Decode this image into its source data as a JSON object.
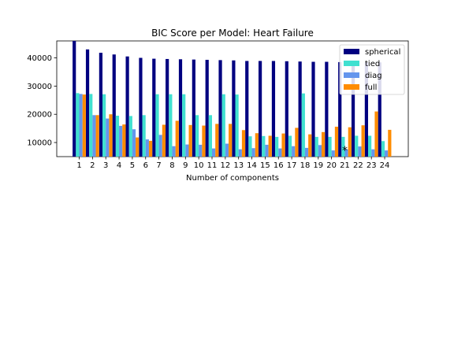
{
  "chart_data": {
    "type": "bar",
    "title": "BIC Score per Model: Heart Failure",
    "xlabel": "Number of components",
    "ylabel": "",
    "categories": [
      "1",
      "2",
      "3",
      "4",
      "5",
      "6",
      "7",
      "8",
      "9",
      "10",
      "11",
      "12",
      "13",
      "14",
      "15",
      "16",
      "17",
      "18",
      "19",
      "20",
      "21",
      "22",
      "23",
      "24"
    ],
    "ylim": [
      5000,
      46000
    ],
    "yticks": [
      10000,
      20000,
      30000,
      40000
    ],
    "ytick_labels": [
      "10000",
      "20000",
      "30000",
      "40000"
    ],
    "series": [
      {
        "name": "spherical",
        "color": "#000080",
        "values": [
          46000,
          43000,
          41800,
          41200,
          40500,
          40000,
          39700,
          39600,
          39500,
          39400,
          39300,
          39200,
          39100,
          38900,
          38900,
          38900,
          38800,
          38700,
          38600,
          38600,
          38500,
          38500,
          38400,
          38400
        ]
      },
      {
        "name": "tied",
        "color": "#40E0D0",
        "values": [
          27500,
          27200,
          27100,
          19500,
          19400,
          19700,
          27100,
          27100,
          27100,
          19700,
          19700,
          27100,
          27000,
          12200,
          12300,
          12000,
          12400,
          27400,
          12000,
          12000,
          12000,
          12400,
          12400,
          10500
        ]
      },
      {
        "name": "diag",
        "color": "#6495ED",
        "values": [
          27200,
          19700,
          18500,
          15900,
          14700,
          11100,
          12700,
          8700,
          9300,
          9200,
          7900,
          9600,
          7600,
          8000,
          9200,
          7900,
          8700,
          8100,
          9100,
          7200,
          7600,
          8600,
          7600,
          7200
        ]
      },
      {
        "name": "full",
        "color": "#FF8C00",
        "values": [
          27000,
          19700,
          20000,
          16400,
          11800,
          10600,
          16300,
          17700,
          16200,
          16000,
          16600,
          16600,
          14400,
          13300,
          12400,
          13200,
          15200,
          12900,
          13700,
          15600,
          15400,
          16100,
          21000,
          14500
        ]
      }
    ],
    "best_marker": {
      "category": "21",
      "symbol": "*"
    },
    "legend_position": "upper right",
    "grid": false
  }
}
